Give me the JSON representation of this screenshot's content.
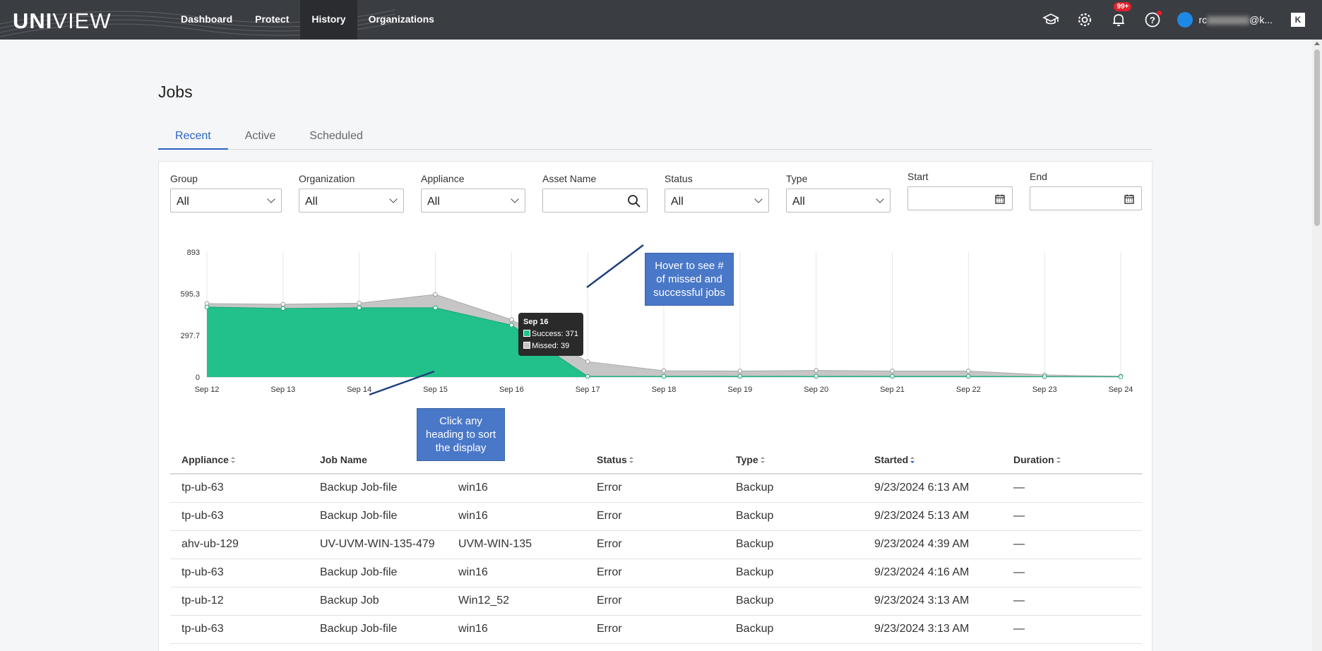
{
  "app": {
    "logo_bold": "UNI",
    "logo_light": "VIEW"
  },
  "nav": [
    {
      "label": "Dashboard"
    },
    {
      "label": "Protect"
    },
    {
      "label": "History"
    },
    {
      "label": "Organizations"
    }
  ],
  "topbar": {
    "notifications_badge": "99+",
    "user_email_prefix": "rc",
    "user_email_suffix": "@k...",
    "k_button": "K",
    "icons": [
      "graduation-cap-icon",
      "gear-icon",
      "bell-icon",
      "help-icon"
    ]
  },
  "page": {
    "title": "Jobs",
    "tabs": [
      "Recent",
      "Active",
      "Scheduled"
    ],
    "active_tab": "Recent"
  },
  "filters": {
    "group": {
      "label": "Group",
      "value": "All"
    },
    "organization": {
      "label": "Organization",
      "value": "All"
    },
    "appliance": {
      "label": "Appliance",
      "value": "All"
    },
    "asset_name": {
      "label": "Asset Name",
      "value": ""
    },
    "status": {
      "label": "Status",
      "value": "All"
    },
    "type": {
      "label": "Type",
      "value": "All"
    },
    "start": {
      "label": "Start",
      "value": ""
    },
    "end": {
      "label": "End",
      "value": ""
    }
  },
  "chart_data": {
    "type": "area",
    "categories": [
      "Sep 12",
      "Sep 13",
      "Sep 14",
      "Sep 15",
      "Sep 16",
      "Sep 17",
      "Sep 18",
      "Sep 19",
      "Sep 20",
      "Sep 21",
      "Sep 22",
      "Sep 23",
      "Sep 24"
    ],
    "yticks": [
      "893",
      "595.3",
      "297.7",
      "0"
    ],
    "ylim": [
      0,
      893
    ],
    "stacked": true,
    "series": [
      {
        "name": "Success",
        "color": "#22c08b",
        "values": [
          500,
          490,
          495,
          495,
          371,
          5,
          5,
          5,
          5,
          5,
          5,
          3,
          2
        ]
      },
      {
        "name": "Missed",
        "color": "#c6c6c6",
        "values": [
          25,
          30,
          33,
          95,
          39,
          105,
          40,
          38,
          42,
          38,
          38,
          12,
          4
        ]
      }
    ],
    "tooltip": {
      "title": "Sep 16",
      "success": "Success: 371",
      "missed": "Missed: 39"
    },
    "grid": true
  },
  "hints": {
    "hover": "Hover to see # of missed and successful jobs",
    "sort": "Click any heading to sort the display"
  },
  "table": {
    "columns": [
      "Appliance",
      "Job Name",
      "",
      "Status",
      "Type",
      "Started",
      "Duration"
    ],
    "rows": [
      [
        "tp-ub-63",
        "Backup Job-file",
        "win16",
        "Error",
        "Backup",
        "9/23/2024 6:13 AM",
        "—"
      ],
      [
        "tp-ub-63",
        "Backup Job-file",
        "win16",
        "Error",
        "Backup",
        "9/23/2024 5:13 AM",
        "—"
      ],
      [
        "ahv-ub-129",
        "UV-UVM-WIN-135-479",
        "UVM-WIN-135",
        "Error",
        "Backup",
        "9/23/2024 4:39 AM",
        "—"
      ],
      [
        "tp-ub-63",
        "Backup Job-file",
        "win16",
        "Error",
        "Backup",
        "9/23/2024 4:16 AM",
        "—"
      ],
      [
        "tp-ub-12",
        "Backup Job",
        "Win12_52",
        "Error",
        "Backup",
        "9/23/2024 3:13 AM",
        "—"
      ],
      [
        "tp-ub-63",
        "Backup Job-file",
        "win16",
        "Error",
        "Backup",
        "9/23/2024 3:13 AM",
        "—"
      ]
    ]
  }
}
